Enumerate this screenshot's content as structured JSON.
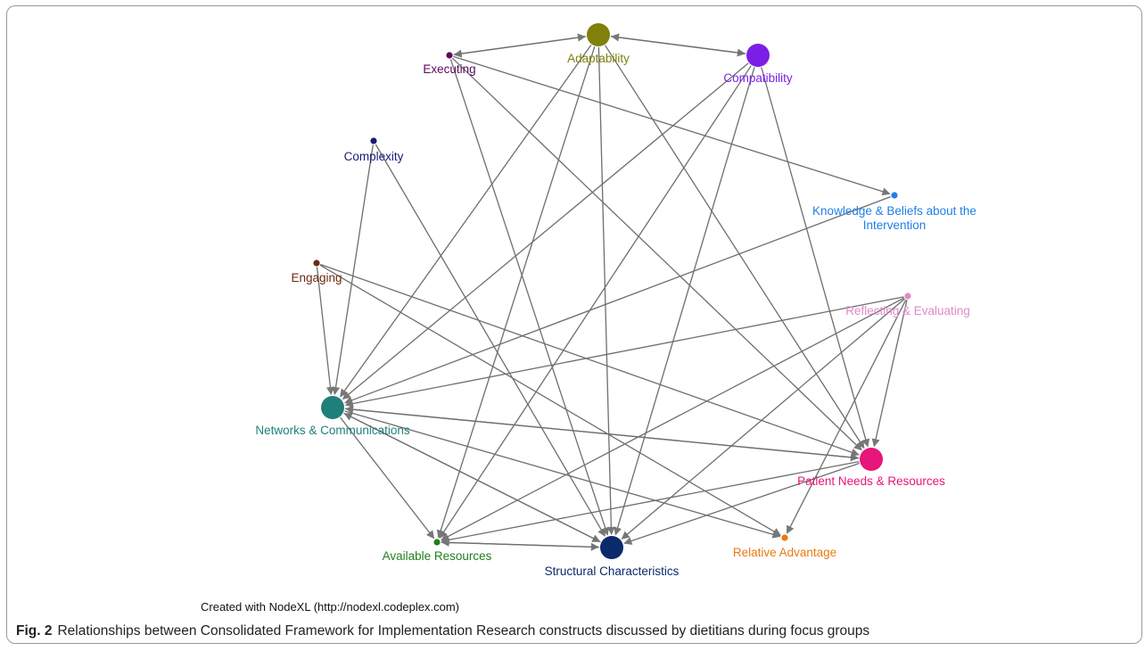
{
  "diagram": {
    "nodes": [
      {
        "id": "adaptability",
        "label": "Adaptability",
        "color": "#80800a",
        "size": "large"
      },
      {
        "id": "compatibility",
        "label": "Compatibility",
        "color": "#7b1fe6",
        "size": "large"
      },
      {
        "id": "executing",
        "label": "Executing",
        "color": "#5c0a5c",
        "size": "small"
      },
      {
        "id": "complexity",
        "label": "Complexity",
        "color": "#1a1a7a",
        "size": "small"
      },
      {
        "id": "knowledge",
        "label": "Knowledge & Beliefs about the Intervention",
        "color": "#1f7fe6",
        "size": "small"
      },
      {
        "id": "engaging",
        "label": "Engaging",
        "color": "#6b2a10",
        "size": "small"
      },
      {
        "id": "reflecting",
        "label": "Reflecting & Evaluating",
        "color": "#e08ac8",
        "size": "small"
      },
      {
        "id": "networks",
        "label": "Networks & Communications",
        "color": "#1f7f7a",
        "size": "large"
      },
      {
        "id": "patient",
        "label": "Patient Needs & Resources",
        "color": "#e8157a",
        "size": "large"
      },
      {
        "id": "available",
        "label": "Available Resources",
        "color": "#1f7f1f",
        "size": "small"
      },
      {
        "id": "structural",
        "label": "Structural Characteristics",
        "color": "#0a2a6b",
        "size": "large"
      },
      {
        "id": "relative",
        "label": "Relative Advantage",
        "color": "#e87a10",
        "size": "small"
      }
    ],
    "edges": [
      [
        "adaptability",
        "executing"
      ],
      [
        "executing",
        "adaptability"
      ],
      [
        "adaptability",
        "compatibility"
      ],
      [
        "compatibility",
        "adaptability"
      ],
      [
        "executing",
        "knowledge"
      ],
      [
        "executing",
        "structural"
      ],
      [
        "executing",
        "patient"
      ],
      [
        "adaptability",
        "networks"
      ],
      [
        "adaptability",
        "available"
      ],
      [
        "adaptability",
        "structural"
      ],
      [
        "adaptability",
        "patient"
      ],
      [
        "compatibility",
        "networks"
      ],
      [
        "compatibility",
        "available"
      ],
      [
        "compatibility",
        "structural"
      ],
      [
        "compatibility",
        "patient"
      ],
      [
        "complexity",
        "networks"
      ],
      [
        "complexity",
        "structural"
      ],
      [
        "knowledge",
        "networks"
      ],
      [
        "engaging",
        "networks"
      ],
      [
        "engaging",
        "patient"
      ],
      [
        "engaging",
        "relative"
      ],
      [
        "reflecting",
        "networks"
      ],
      [
        "reflecting",
        "available"
      ],
      [
        "reflecting",
        "structural"
      ],
      [
        "reflecting",
        "patient"
      ],
      [
        "reflecting",
        "relative"
      ],
      [
        "networks",
        "patient"
      ],
      [
        "patient",
        "networks"
      ],
      [
        "networks",
        "available"
      ],
      [
        "networks",
        "structural"
      ],
      [
        "networks",
        "relative"
      ],
      [
        "patient",
        "available"
      ],
      [
        "patient",
        "structural"
      ],
      [
        "available",
        "structural"
      ],
      [
        "structural",
        "available"
      ],
      [
        "structural",
        "networks"
      ]
    ]
  },
  "credit": "Created with NodeXL (http://nodexl.codeplex.com)",
  "caption": {
    "figure_label": "Fig. 2",
    "text": "Relationships between Consolidated Framework for Implementation Research constructs discussed by dietitians during focus groups"
  }
}
